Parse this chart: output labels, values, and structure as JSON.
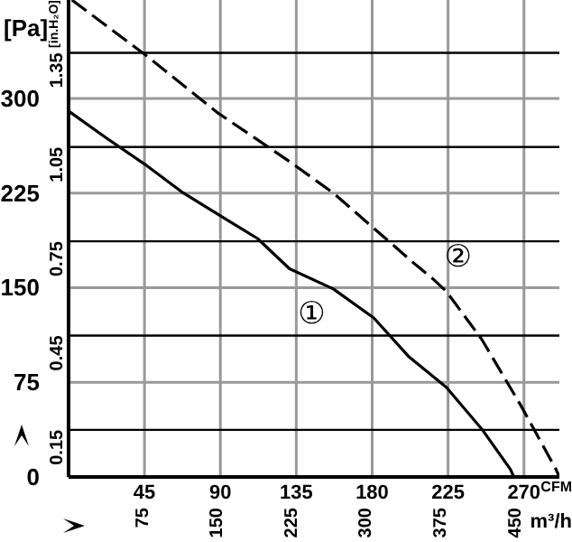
{
  "chart_data": {
    "type": "line",
    "xlabel": "CFM",
    "x2label": "m³/h",
    "ylabel": "[Pa]",
    "y2label": "[in.H₂O]",
    "xlim": [
      0,
      291
    ],
    "xticks": [
      45,
      90,
      135,
      180,
      225,
      270
    ],
    "x2lim": [
      0,
      494
    ],
    "x2ticks": [
      75,
      150,
      225,
      300,
      375,
      450
    ],
    "ylim": [
      0,
      378
    ],
    "yticks": [
      0,
      75,
      150,
      225,
      300
    ],
    "y2lim": [
      0,
      1.518
    ],
    "y2ticks": [
      0.15,
      0.45,
      0.75,
      1.05,
      1.35
    ],
    "grid": true,
    "marker": "none",
    "series": [
      {
        "color": "#000000",
        "line_style": "solid",
        "x": [
          0,
          22,
          45,
          67,
          90,
          112,
          131,
          157,
          181,
          202,
          224,
          245,
          262,
          264
        ],
        "values": [
          290,
          269,
          248,
          226,
          207,
          189,
          165,
          149,
          126,
          95,
          71,
          38,
          6,
          0
        ]
      },
      {
        "color": "#000000",
        "line_style": "dashed",
        "x": [
          2,
          45,
          88,
          131,
          157,
          206,
          216,
          224,
          245,
          268,
          289,
          291
        ],
        "values": [
          378,
          335,
          289,
          250,
          225,
          168,
          157,
          147,
          109,
          57,
          6,
          0
        ]
      }
    ],
    "annotations": [
      "①",
      "②"
    ]
  }
}
